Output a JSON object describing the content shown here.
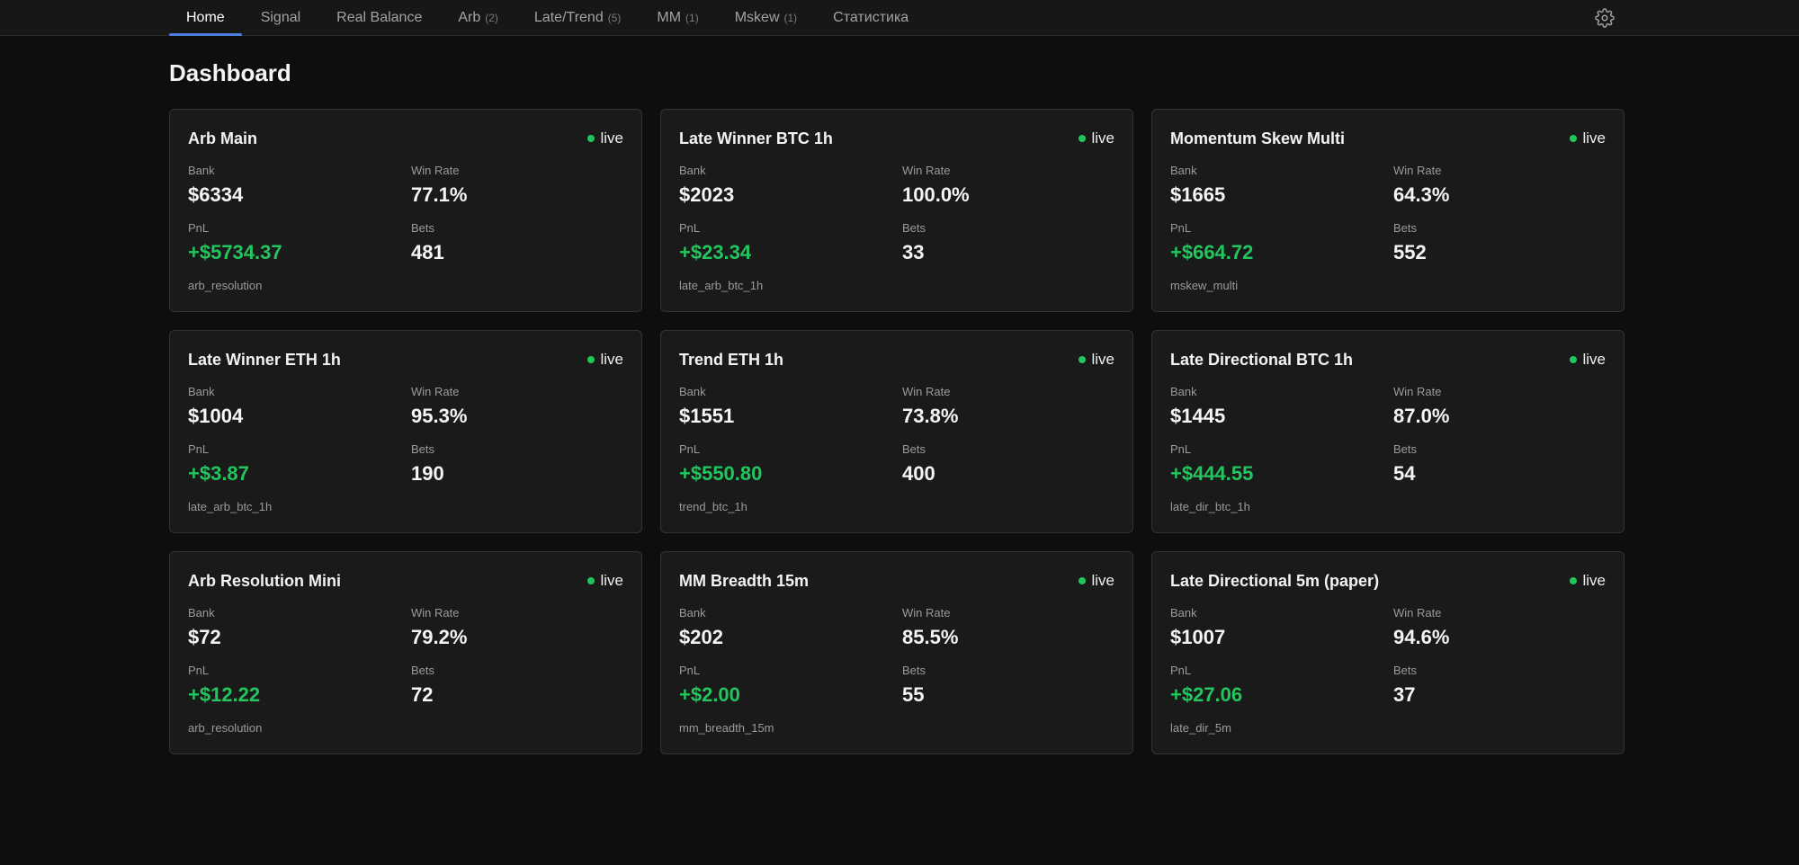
{
  "nav": {
    "tabs": [
      {
        "label": "Home",
        "count": ""
      },
      {
        "label": "Signal",
        "count": ""
      },
      {
        "label": "Real Balance",
        "count": ""
      },
      {
        "label": "Arb",
        "count": "(2)"
      },
      {
        "label": "Late/Trend",
        "count": "(5)"
      },
      {
        "label": "MM",
        "count": "(1)"
      },
      {
        "label": "Mskew",
        "count": "(1)"
      },
      {
        "label": "Статистика",
        "count": ""
      }
    ],
    "active_tab": "Home",
    "settings_icon": "gear-icon"
  },
  "page": {
    "title": "Dashboard"
  },
  "labels": {
    "bank": "Bank",
    "win_rate": "Win Rate",
    "pnl": "PnL",
    "bets": "Bets"
  },
  "colors": {
    "accent": "#4f7fe0",
    "live": "#22c55e",
    "positive": "#22c55e"
  },
  "cards": [
    {
      "title": "Arb Main",
      "status": "live",
      "bank": "$6334",
      "win_rate": "77.1%",
      "pnl": "+$5734.37",
      "bets": "481",
      "strategy": "arb_resolution"
    },
    {
      "title": "Late Winner BTC 1h",
      "status": "live",
      "bank": "$2023",
      "win_rate": "100.0%",
      "pnl": "+$23.34",
      "bets": "33",
      "strategy": "late_arb_btc_1h"
    },
    {
      "title": "Momentum Skew Multi",
      "status": "live",
      "bank": "$1665",
      "win_rate": "64.3%",
      "pnl": "+$664.72",
      "bets": "552",
      "strategy": "mskew_multi"
    },
    {
      "title": "Late Winner ETH 1h",
      "status": "live",
      "bank": "$1004",
      "win_rate": "95.3%",
      "pnl": "+$3.87",
      "bets": "190",
      "strategy": "late_arb_btc_1h"
    },
    {
      "title": "Trend ETH 1h",
      "status": "live",
      "bank": "$1551",
      "win_rate": "73.8%",
      "pnl": "+$550.80",
      "bets": "400",
      "strategy": "trend_btc_1h"
    },
    {
      "title": "Late Directional BTC 1h",
      "status": "live",
      "bank": "$1445",
      "win_rate": "87.0%",
      "pnl": "+$444.55",
      "bets": "54",
      "strategy": "late_dir_btc_1h"
    },
    {
      "title": "Arb Resolution Mini",
      "status": "live",
      "bank": "$72",
      "win_rate": "79.2%",
      "pnl": "+$12.22",
      "bets": "72",
      "strategy": "arb_resolution"
    },
    {
      "title": "MM Breadth 15m",
      "status": "live",
      "bank": "$202",
      "win_rate": "85.5%",
      "pnl": "+$2.00",
      "bets": "55",
      "strategy": "mm_breadth_15m"
    },
    {
      "title": "Late Directional 5m (paper)",
      "status": "live",
      "bank": "$1007",
      "win_rate": "94.6%",
      "pnl": "+$27.06",
      "bets": "37",
      "strategy": "late_dir_5m"
    }
  ]
}
